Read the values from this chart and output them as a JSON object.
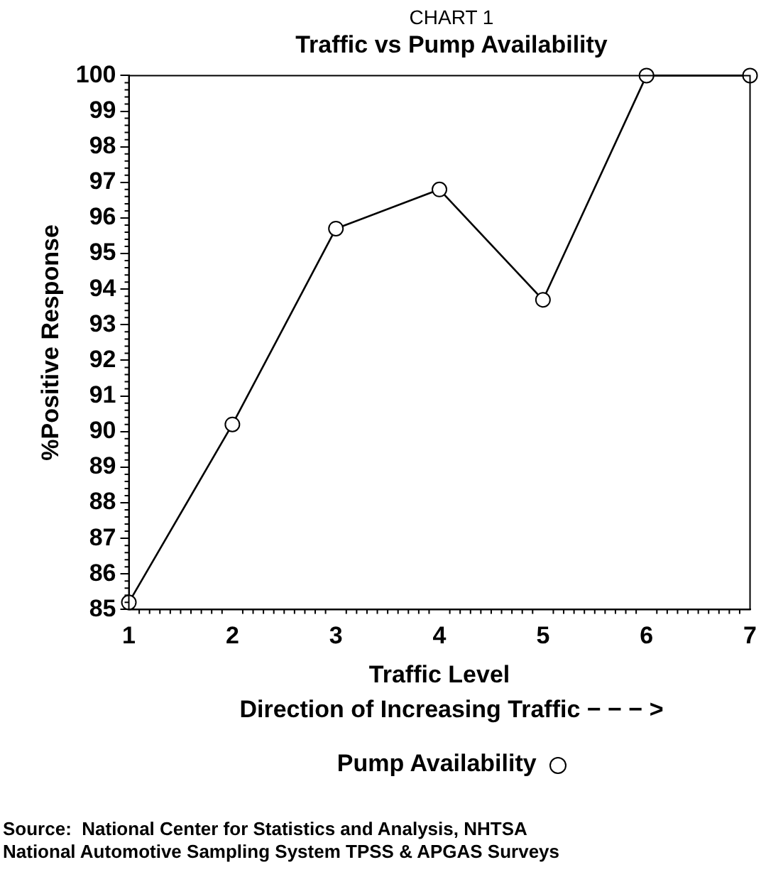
{
  "chart_data": {
    "type": "line",
    "title": "Traffic vs Pump Availability",
    "subtitle": "CHART 1",
    "xlabel": "Traffic Level",
    "ylabel": "%Positive Response",
    "x": [
      1,
      2,
      3,
      4,
      5,
      6,
      7
    ],
    "series": [
      {
        "name": "Pump Availability",
        "color": "#000000",
        "values": [
          85.2,
          90.2,
          95.7,
          96.8,
          93.7,
          100,
          100
        ]
      }
    ],
    "xlim": [
      1,
      7
    ],
    "xticks": [
      1,
      2,
      3,
      4,
      5,
      6,
      7
    ],
    "ylim": [
      85,
      100
    ],
    "yticks": [
      85,
      86,
      87,
      88,
      89,
      90,
      91,
      92,
      93,
      94,
      95,
      96,
      97,
      98,
      99,
      100
    ],
    "grid": false,
    "legend": "bottom",
    "marker": "circle",
    "line_style": "solid",
    "annotations": [
      "Direction of Increasing Traffic − − − >",
      "Source:  National Center for Statistics and Analysis, NHTSA",
      "National Automotive Sampling System TPSS & APGAS Surveys"
    ]
  }
}
